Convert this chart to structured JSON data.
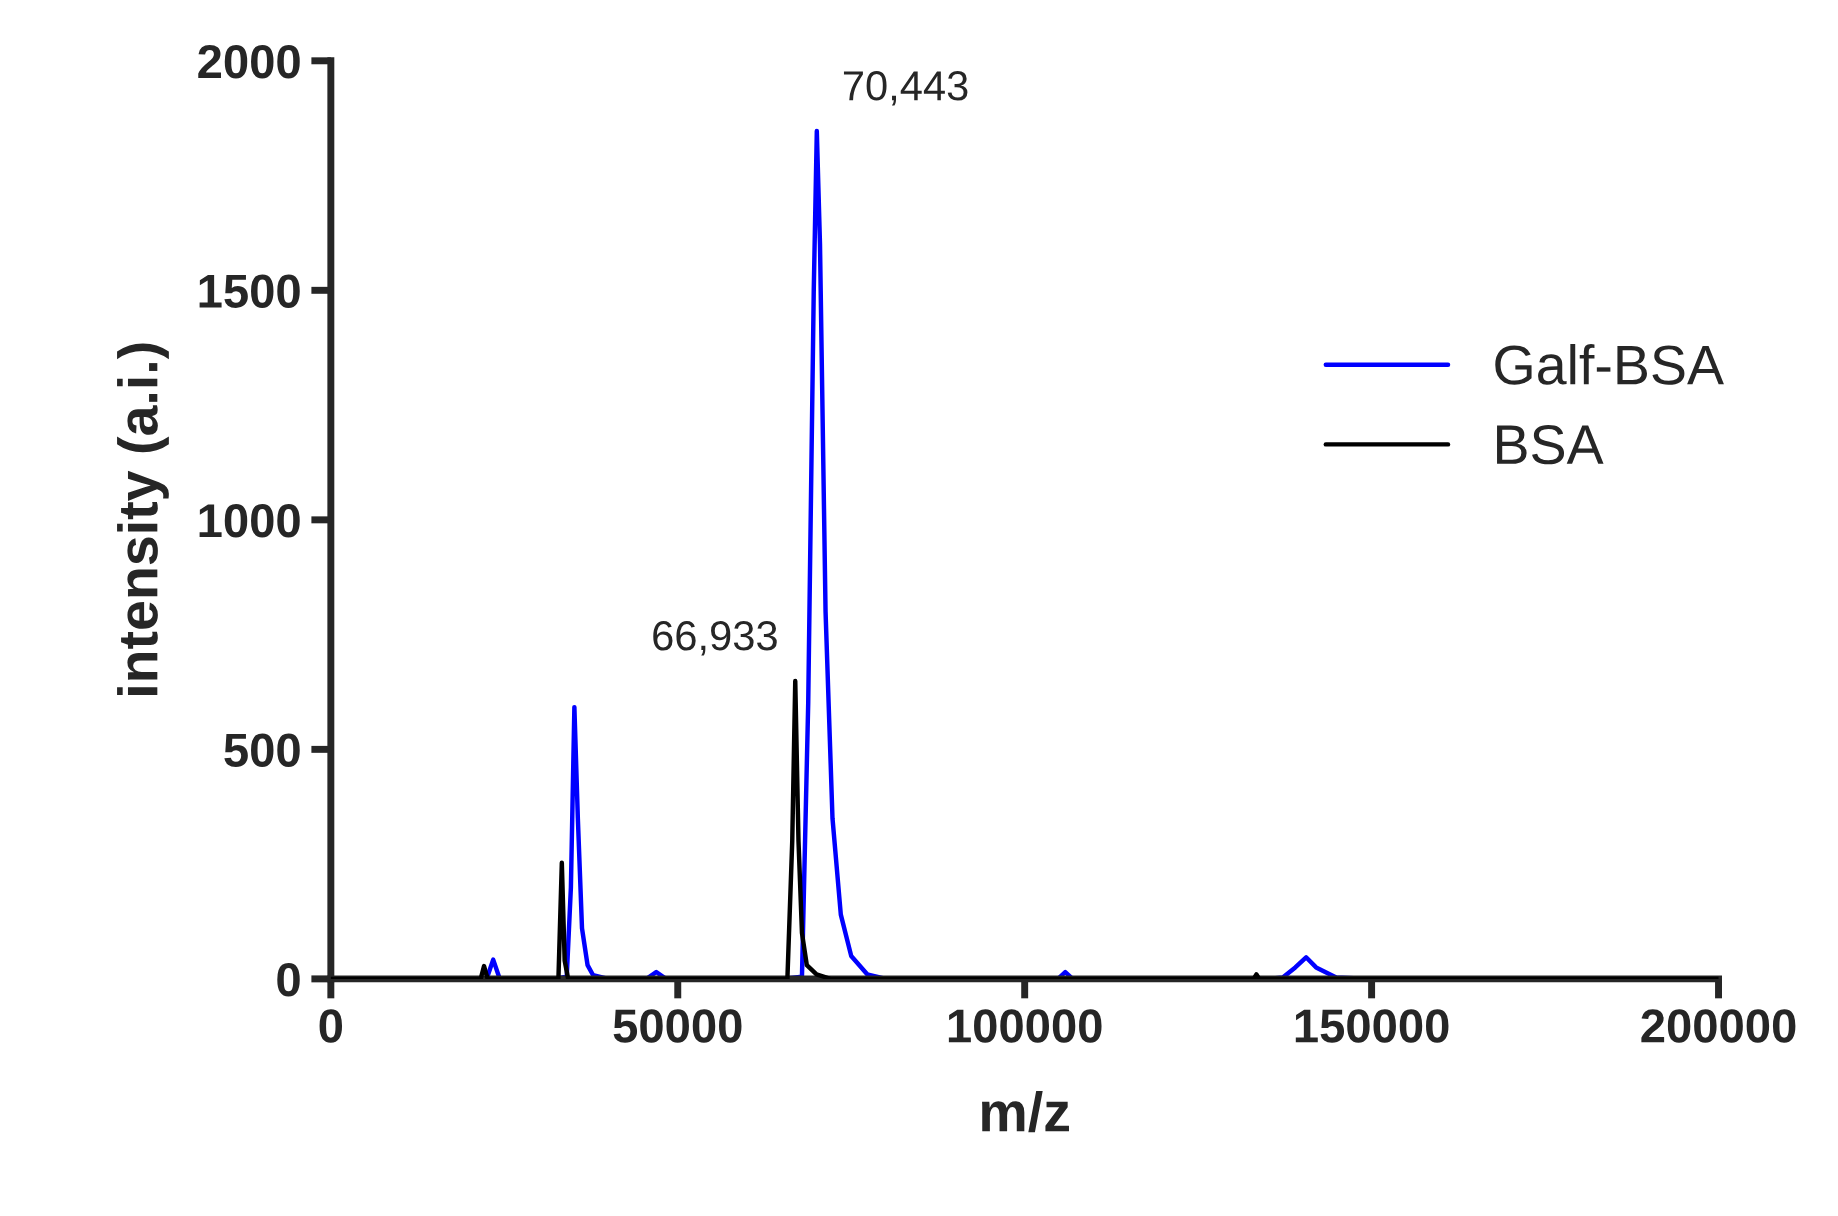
{
  "chart_data": {
    "type": "line",
    "xlabel": "m/z",
    "ylabel": "intensity (a.i.)",
    "xlim": [
      0,
      200000
    ],
    "ylim": [
      0,
      2000
    ],
    "xticks": [
      0,
      50000,
      100000,
      150000,
      200000
    ],
    "yticks": [
      0,
      500,
      1000,
      1500,
      2000
    ],
    "grid": false,
    "legend": "right",
    "marker": "none",
    "line_style": "solid",
    "series": [
      {
        "name": "Galf-BSA",
        "color": "#0000ff",
        "x": [
          0,
          20000,
          22500,
          23400,
          24300,
          26000,
          32000,
          34000,
          34600,
          35100,
          35600,
          36200,
          37000,
          37800,
          40000,
          45500,
          46900,
          48300,
          55000,
          65000,
          67900,
          68800,
          69600,
          70040,
          70500,
          71300,
          72300,
          73500,
          75000,
          77300,
          80000,
          100000,
          104800,
          105850,
          106900,
          120000,
          135000,
          137200,
          139000,
          140560,
          142000,
          144900,
          150000,
          200000
        ],
        "values": [
          0,
          0,
          2,
          42,
          2,
          0,
          0,
          5,
          200,
          592,
          350,
          110,
          30,
          8,
          0,
          0,
          15,
          0,
          0,
          0,
          5,
          600,
          1500,
          1847,
          1600,
          800,
          350,
          140,
          50,
          10,
          0,
          0,
          0,
          15,
          0,
          0,
          0,
          3,
          25,
          47,
          25,
          3,
          0,
          0
        ]
      },
      {
        "name": "BSA",
        "color": "#000000",
        "x": [
          0,
          21600,
          22080,
          22600,
          32800,
          33290,
          33700,
          34200,
          60000,
          65800,
          66500,
          66933,
          67400,
          67900,
          68600,
          70000,
          72000,
          130000,
          133000,
          133400,
          133800,
          200000
        ],
        "values": [
          0,
          0,
          28,
          0,
          0,
          253,
          40,
          0,
          0,
          0,
          300,
          649,
          300,
          100,
          30,
          10,
          0,
          0,
          0,
          10,
          0,
          0
        ]
      }
    ],
    "annotations": [
      {
        "text": "70,443",
        "x": 70443,
        "y": 1847
      },
      {
        "text": "66,933",
        "x": 66933,
        "y": 649
      }
    ]
  }
}
